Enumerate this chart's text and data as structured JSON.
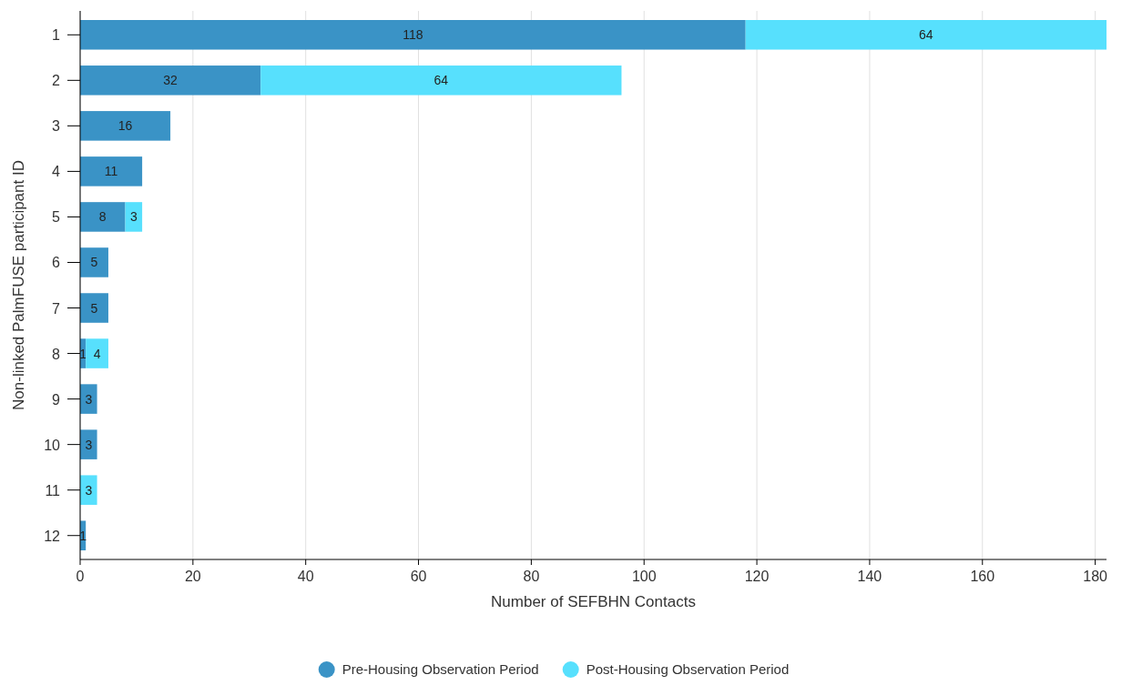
{
  "chart_data": {
    "type": "bar",
    "orientation": "horizontal",
    "stacked": true,
    "xlabel": "Number of SEFBHN Contacts",
    "ylabel": "Non-linked PalmFUSE participant ID",
    "categories": [
      "1",
      "2",
      "3",
      "4",
      "5",
      "6",
      "7",
      "8",
      "9",
      "10",
      "11",
      "12"
    ],
    "series": [
      {
        "name": "Pre-Housing Observation Period",
        "color": "#3a93c6",
        "values": [
          118,
          32,
          16,
          11,
          8,
          5,
          5,
          1,
          3,
          3,
          null,
          1
        ]
      },
      {
        "name": "Post-Housing Observation Period",
        "color": "#57e0fd",
        "values": [
          64,
          64,
          null,
          null,
          3,
          null,
          null,
          4,
          null,
          null,
          3,
          null
        ]
      }
    ],
    "xlim": [
      0,
      182
    ],
    "xticks": [
      0,
      20,
      40,
      60,
      80,
      100,
      120,
      140,
      160,
      180
    ],
    "grid": "x",
    "data_labels": true,
    "legend": "bottom"
  }
}
